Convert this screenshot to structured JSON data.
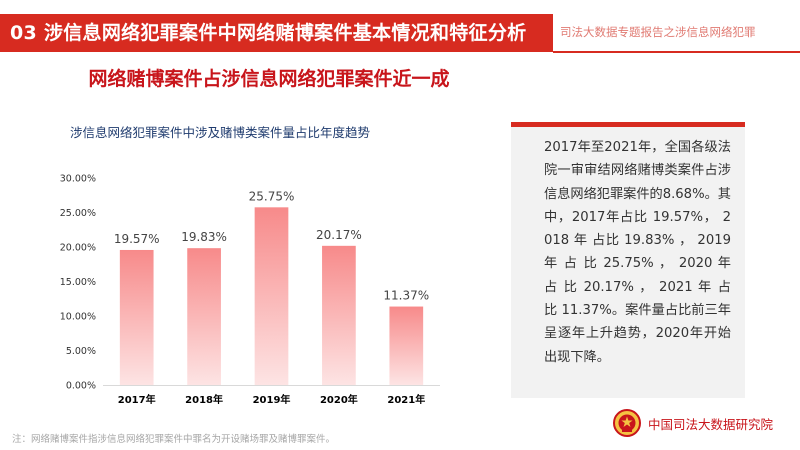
{
  "header": {
    "title": "03  涉信息网络犯罪案件中网络赌博案件基本情况和特征分析",
    "right_text": "司法大数据专题报告之涉信息网络犯罪",
    "accent_color": "#d72b20"
  },
  "subtitle": "网络赌博案件占涉信息网络犯罪案件近一成",
  "chart_data": {
    "type": "bar",
    "title": "涉信息网络犯罪案件中涉及赌博类案件量占比年度趋势",
    "categories": [
      "2017年",
      "2018年",
      "2019年",
      "2020年",
      "2021年"
    ],
    "values": [
      19.57,
      19.83,
      25.75,
      20.17,
      11.37
    ],
    "data_labels": [
      "19.57%",
      "19.83%",
      "25.75%",
      "20.17%",
      "11.37%"
    ],
    "y_ticks": [
      "0.00%",
      "5.00%",
      "10.00%",
      "15.00%",
      "20.00%",
      "25.00%",
      "30.00%"
    ],
    "ylim": [
      0,
      30
    ],
    "grid": false,
    "bar_color_top": "#f78a8a",
    "bar_color_bottom": "#fde4e4"
  },
  "panel_text": "2017年至2021年，全国各级法院一审审结网络赌博类案件占涉信息网络犯罪案件的8.68%。其中，2017年占比 19.57%， 2018 年 占比 19.83% ， 2019 年 占 比 25.75% ， 2020 年 占 比 20.17% ， 2021 年 占 比 11.37%。案件量占比前三年呈逐年上升趋势，2020年开始出现下降。",
  "footnote": "注：网络赌博案件指涉信息网络犯罪案件中罪名为开设赌场罪及赌博罪案件。",
  "org_name": "中国司法大数据研究院"
}
